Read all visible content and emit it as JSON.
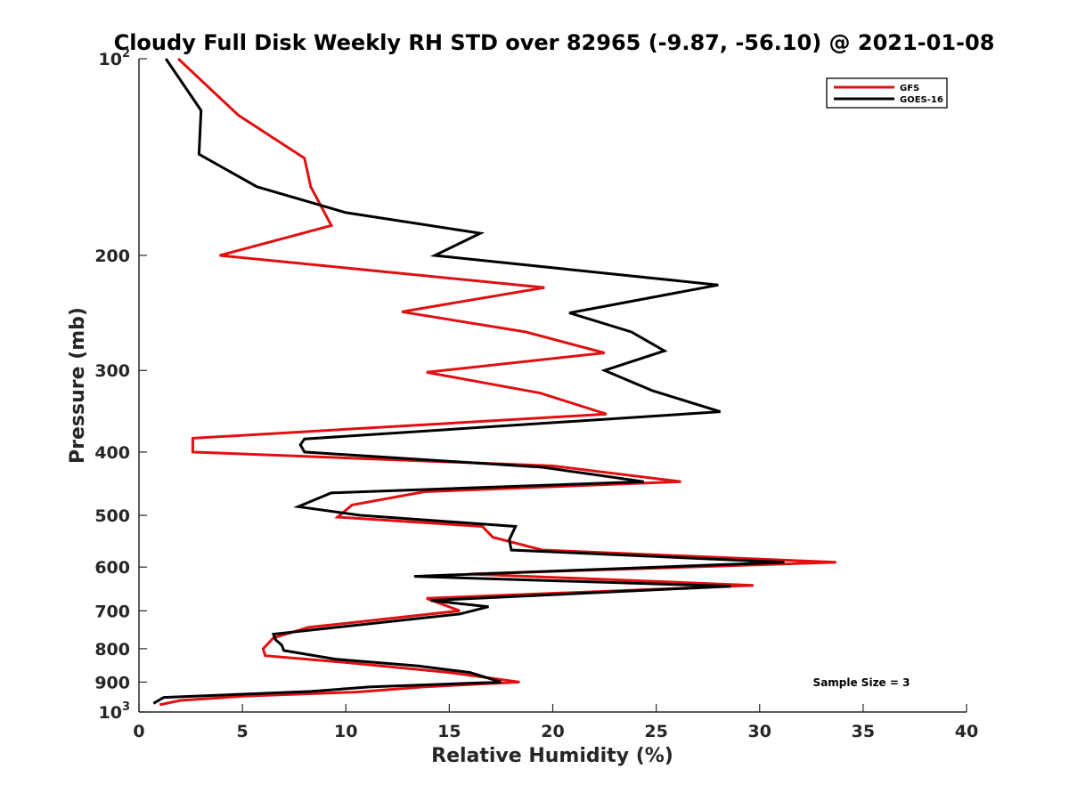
{
  "chart_data": {
    "type": "line",
    "title": "Cloudy Full Disk Weekly RH STD over 82965 (-9.87, -56.10) @ 2021-01-08",
    "xlabel": "Relative Humidity (%)",
    "ylabel": "Pressure (mb)",
    "xlim": [
      0,
      40
    ],
    "ylim": [
      100,
      1000
    ],
    "y_scale": "log",
    "y_reversed": true,
    "grid": false,
    "legend_position": "top-right",
    "x_ticks": [
      "0",
      "5",
      "10",
      "15",
      "20",
      "25",
      "30",
      "35",
      "40"
    ],
    "y_ticks": [
      {
        "value": 100,
        "base": "10",
        "exp": "2"
      },
      {
        "value": 200,
        "label": "200"
      },
      {
        "value": 300,
        "label": "300"
      },
      {
        "value": 400,
        "label": "400"
      },
      {
        "value": 500,
        "label": "500"
      },
      {
        "value": 600,
        "label": "600"
      },
      {
        "value": 700,
        "label": "700"
      },
      {
        "value": 800,
        "label": "800"
      },
      {
        "value": 900,
        "label": "900"
      },
      {
        "value": 1000,
        "base": "10",
        "exp": "3"
      }
    ],
    "series": [
      {
        "name": "GFS",
        "color": "#e01010",
        "x": [
          1.9,
          4.8,
          8.0,
          8.3,
          9.3,
          3.9,
          19.6,
          12.7,
          18.7,
          22.5,
          13.9,
          19.4,
          22.6,
          2.6,
          2.6,
          20.0,
          26.2,
          13.8,
          10.3,
          9.6,
          16.6,
          17.1,
          19.5,
          33.7,
          16.0,
          29.7,
          13.9,
          15.5,
          8.2,
          6.5,
          6.0,
          6.1,
          10.0,
          15.0,
          18.4,
          13.8,
          10.5,
          5.0,
          2.0,
          1.0
        ],
        "y": [
          100,
          122,
          142,
          157,
          180,
          200,
          224,
          244,
          262,
          282,
          302,
          325,
          350,
          381,
          400,
          420,
          444,
          460,
          482,
          503,
          520,
          540,
          565,
          590,
          615,
          640,
          670,
          700,
          742,
          770,
          800,
          820,
          840,
          870,
          900,
          915,
          932,
          946,
          960,
          975
        ]
      },
      {
        "name": "GOES-16",
        "color": "#000000",
        "x": [
          1.3,
          3.0,
          2.9,
          5.7,
          10.0,
          16.5,
          14.3,
          28.0,
          20.8,
          23.8,
          25.4,
          22.5,
          24.8,
          28.1,
          8.0,
          7.8,
          8.0,
          19.5,
          24.4,
          9.3,
          7.7,
          10.7,
          18.2,
          17.9,
          18.0,
          31.2,
          13.3,
          28.6,
          14.1,
          16.9,
          15.5,
          6.5,
          6.6,
          6.9,
          7.0,
          9.5,
          13.5,
          16.0,
          17.5,
          11.2,
          8.3,
          1.2,
          0.7
        ],
        "y": [
          100,
          120,
          140,
          157,
          172,
          185,
          200,
          222,
          245,
          262,
          280,
          300,
          322,
          347,
          382,
          390,
          400,
          422,
          444,
          462,
          485,
          500,
          520,
          545,
          565,
          590,
          620,
          642,
          675,
          690,
          708,
          760,
          775,
          790,
          805,
          830,
          850,
          870,
          900,
          915,
          930,
          950,
          970
        ]
      }
    ],
    "annotation": "Sample Size = 3"
  }
}
